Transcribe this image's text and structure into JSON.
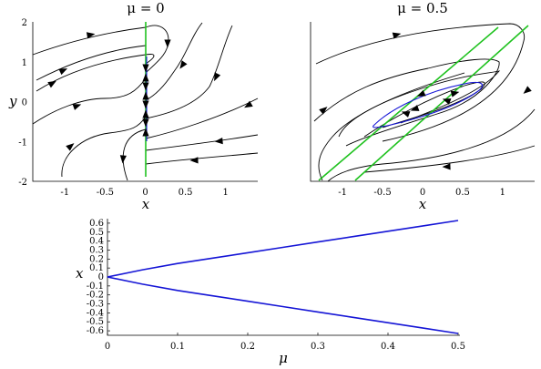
{
  "chart_data": [
    {
      "type": "phase-portrait",
      "title": "μ = 0",
      "xlabel": "x",
      "ylabel": "y",
      "xlim": [
        -1.4,
        1.4
      ],
      "ylim": [
        -2,
        2
      ],
      "xticks": [
        "-1",
        "-0.5",
        "0",
        "0.5",
        "1"
      ],
      "yticks": [
        "2",
        "1",
        "0",
        "-1",
        "-2"
      ],
      "colors": {
        "trajectories": "#000000",
        "nullclines": "#1fc21f",
        "invariant_segment": "#1515d6"
      },
      "nullcline": {
        "x": [
          0,
          0
        ],
        "y": [
          -1,
          1
        ],
        "horizontal_tails": [
          [
            0,
            2,
            1
          ],
          [
            0,
            -2,
            -1
          ]
        ]
      }
    },
    {
      "type": "phase-portrait",
      "title": "μ = 0.5",
      "xlabel": "x",
      "ylabel": "y",
      "xlim": [
        -1.4,
        1.4
      ],
      "ylim": [
        -2,
        2
      ],
      "xticks": [
        "-1",
        "-0.5",
        "0",
        "0.5",
        "1"
      ],
      "yticks": [],
      "colors": {
        "trajectories": "#000000",
        "nullclines": "#1fc21f",
        "limit_cycle": "#1515d6"
      },
      "nullclines": [
        {
          "x": [
            -1.25,
            0.95
          ],
          "y": [
            -2,
            2
          ]
        },
        {
          "x": [
            -0.55,
            1.35
          ],
          "y": [
            -2,
            2
          ]
        }
      ]
    },
    {
      "type": "line",
      "title": "",
      "xlabel": "μ",
      "ylabel": "x",
      "xlim": [
        0,
        0.5
      ],
      "ylim": [
        -0.65,
        0.65
      ],
      "xticks": [
        "0",
        "0.1",
        "0.2",
        "0.3",
        "0.4",
        "0.5"
      ],
      "yticks": [
        "0.6",
        "0.5",
        "0.4",
        "0.3",
        "0.2",
        "0.1",
        "0",
        "-0.1",
        "-0.2",
        "-0.3",
        "-0.4",
        "-0.5",
        "-0.6"
      ],
      "color": "#1515d6",
      "series": [
        {
          "x": [
            0,
            0.05,
            0.1,
            0.15,
            0.2,
            0.25,
            0.3,
            0.35,
            0.4,
            0.45,
            0.5
          ],
          "y": [
            0,
            0.08,
            0.15,
            0.21,
            0.27,
            0.33,
            0.39,
            0.45,
            0.51,
            0.57,
            0.63
          ]
        },
        {
          "x": [
            0,
            0.05,
            0.1,
            0.15,
            0.2,
            0.25,
            0.3,
            0.35,
            0.4,
            0.45,
            0.5
          ],
          "y": [
            0,
            -0.08,
            -0.15,
            -0.21,
            -0.27,
            -0.33,
            -0.39,
            -0.45,
            -0.51,
            -0.57,
            -0.63
          ]
        }
      ]
    }
  ]
}
